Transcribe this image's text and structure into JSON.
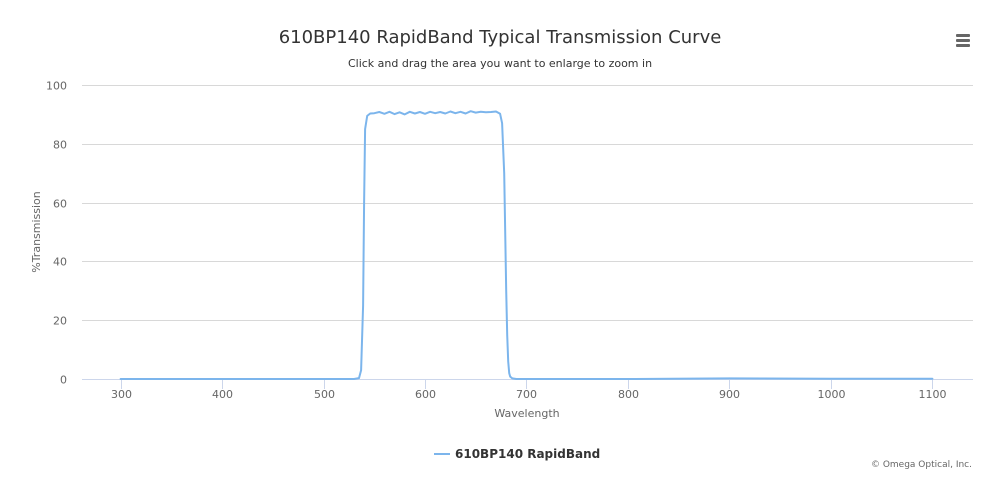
{
  "chart_data": {
    "type": "line",
    "title": "610BP140 RapidBand Typical Transmission Curve",
    "subtitle": "Click and drag the area you want to enlarge to zoom in",
    "xlabel": "Wavelength",
    "ylabel": "%Transmission",
    "xlim": [
      262,
      1140
    ],
    "ylim": [
      0,
      100
    ],
    "x_ticks": [
      300,
      400,
      500,
      600,
      700,
      800,
      900,
      1000,
      1100
    ],
    "y_ticks": [
      0,
      20,
      40,
      60,
      80,
      100
    ],
    "grid": true,
    "legend_position": "bottom-center",
    "series": [
      {
        "name": "610BP140 RapidBand",
        "color": "#7cb5ec",
        "x": [
          300,
          400,
          500,
          530,
          535,
          537,
          539,
          540,
          541,
          543,
          546,
          550,
          555,
          560,
          565,
          570,
          575,
          580,
          585,
          590,
          595,
          600,
          605,
          610,
          615,
          620,
          625,
          630,
          635,
          640,
          645,
          650,
          655,
          660,
          665,
          670,
          674,
          676,
          678,
          679,
          680,
          681,
          682,
          683,
          684,
          686,
          690,
          700,
          800,
          900,
          1000,
          1100
        ],
        "values": [
          0,
          0,
          0,
          0,
          0.3,
          3,
          25,
          60,
          85,
          89.5,
          90.3,
          90.4,
          90.8,
          90.2,
          90.9,
          90.1,
          90.7,
          90.0,
          90.9,
          90.3,
          90.8,
          90.2,
          90.9,
          90.4,
          90.8,
          90.3,
          91.0,
          90.4,
          90.9,
          90.3,
          91.1,
          90.6,
          90.9,
          90.7,
          90.8,
          91.0,
          90.2,
          87,
          70,
          50,
          30,
          15,
          6,
          2,
          0.8,
          0.2,
          0,
          0,
          0,
          0.2,
          0.1,
          0.1
        ]
      }
    ]
  },
  "credits": "© Omega Optical, Inc."
}
